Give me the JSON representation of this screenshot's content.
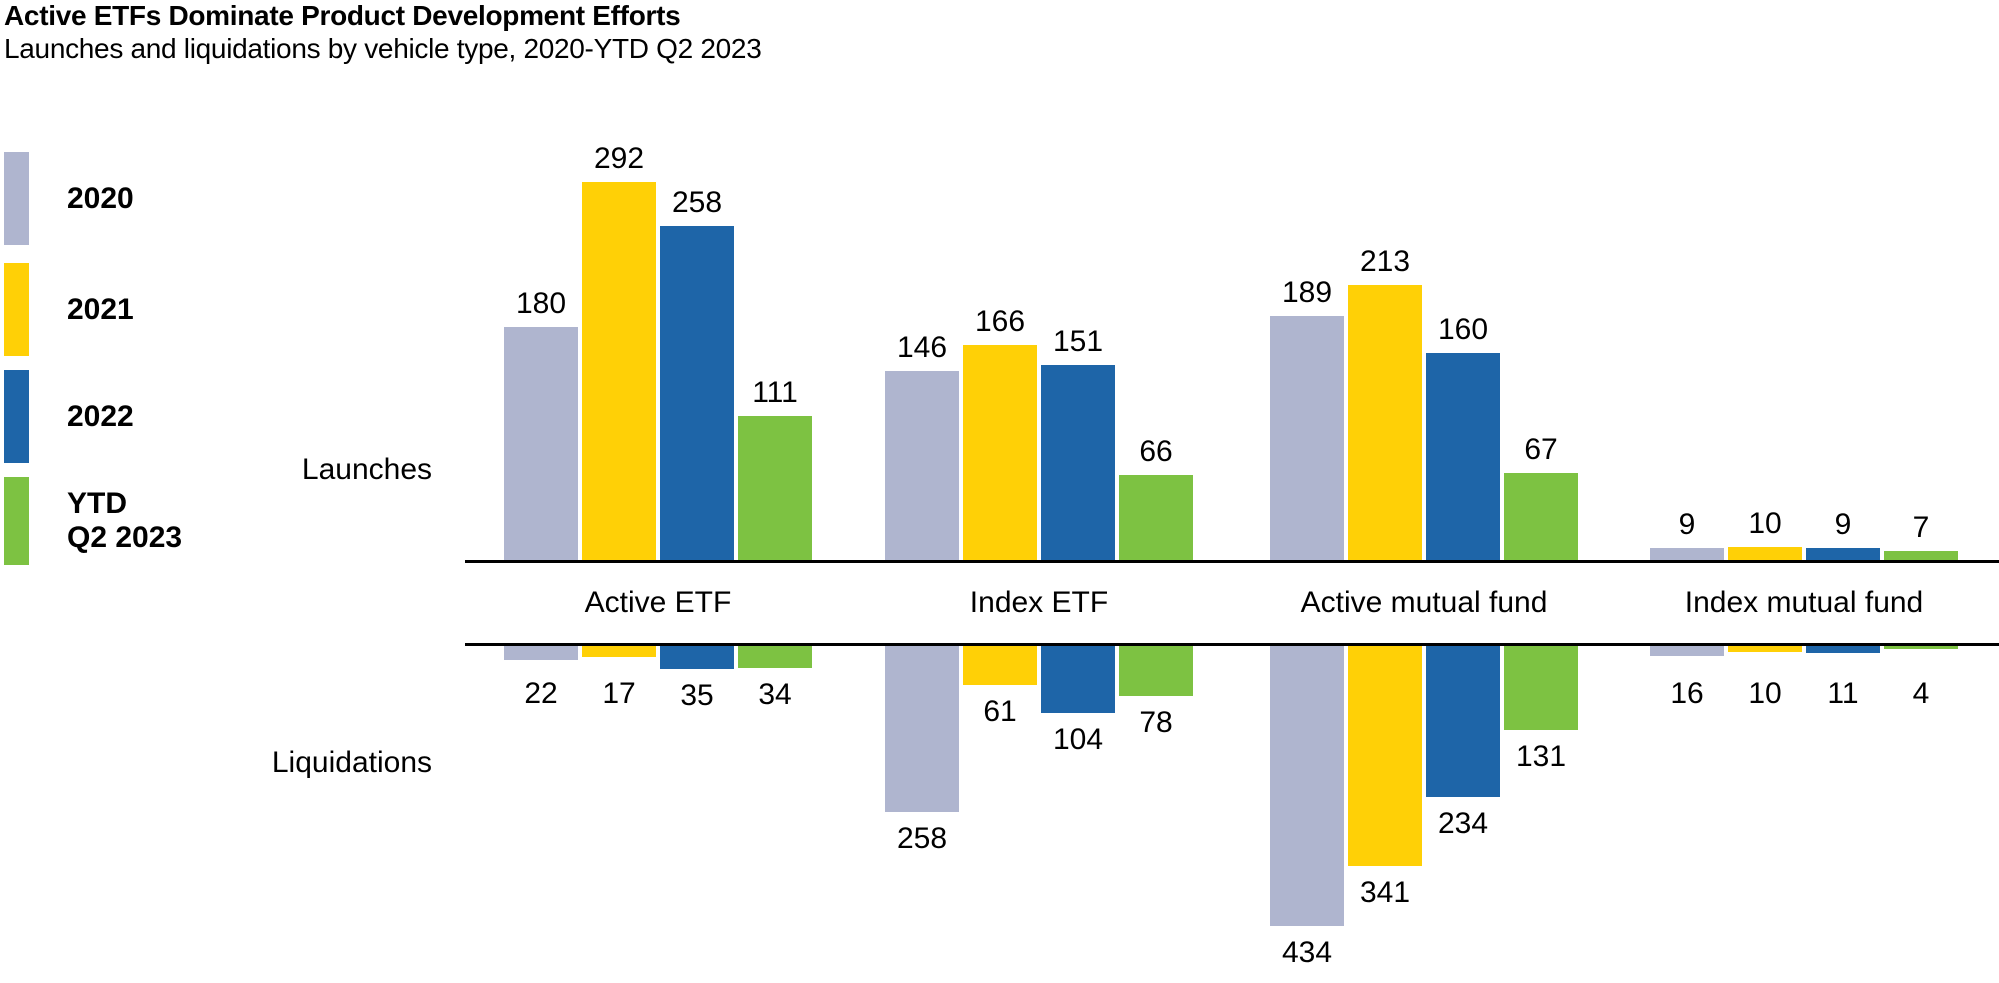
{
  "chart_data": {
    "type": "bar",
    "title": "Active ETFs Dominate Product Development Efforts",
    "subtitle": "Launches and liquidations by vehicle type, 2020-YTD Q2 2023",
    "row_labels": {
      "top": "Launches",
      "bottom": "Liquidations"
    },
    "categories": [
      "Active ETF",
      "Index ETF",
      "Active mutual fund",
      "Index mutual fund"
    ],
    "series": [
      {
        "name": "2020",
        "legend_lines": [
          "2020"
        ],
        "color": "#AFB5CF",
        "launches": [
          180,
          146,
          189,
          9
        ],
        "liquidations": [
          22,
          258,
          434,
          16
        ]
      },
      {
        "name": "2021",
        "legend_lines": [
          "2021"
        ],
        "color": "#FFD006",
        "launches": [
          292,
          166,
          213,
          10
        ],
        "liquidations": [
          17,
          61,
          341,
          10
        ]
      },
      {
        "name": "2022",
        "legend_lines": [
          "2022"
        ],
        "color": "#1E65A8",
        "launches": [
          258,
          151,
          160,
          9
        ],
        "liquidations": [
          35,
          104,
          234,
          11
        ]
      },
      {
        "name": "YTD Q2 2023",
        "legend_lines": [
          "YTD",
          "Q2 2023"
        ],
        "color": "#7DC242",
        "launches": [
          111,
          66,
          67,
          7
        ],
        "liquidations": [
          34,
          78,
          131,
          4
        ]
      }
    ],
    "axes": {
      "baseline_color": "#000000",
      "grid": false,
      "value_labels": true,
      "legend_position": "left",
      "layout": "diverging: launches above top baseline, liquidations below bottom baseline, category names between baselines"
    }
  }
}
